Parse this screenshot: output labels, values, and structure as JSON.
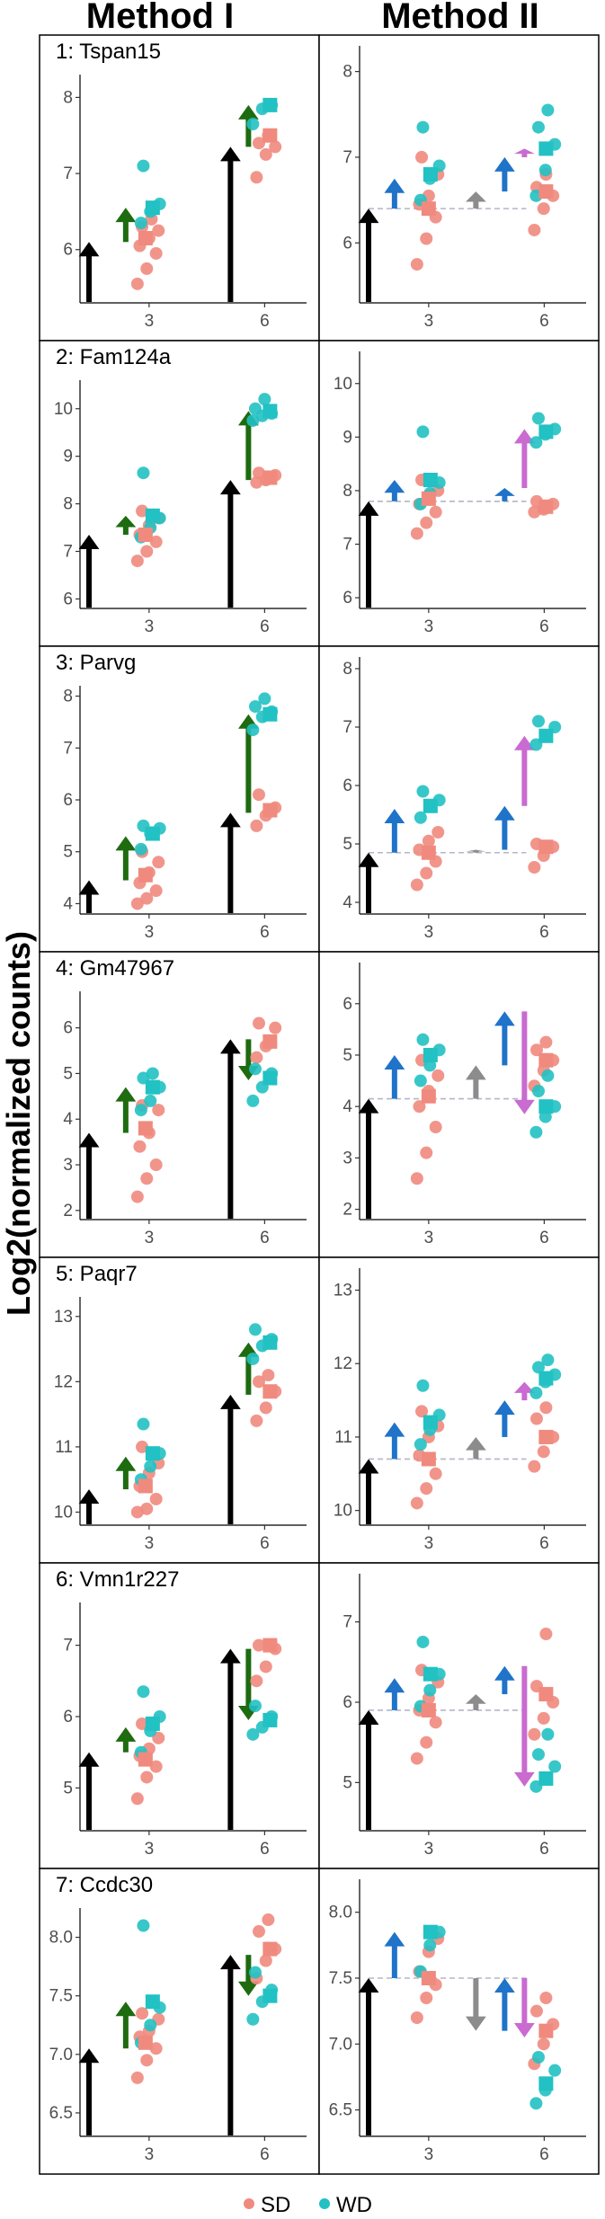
{
  "header": {
    "col1": "Method I",
    "col2": "Method II"
  },
  "y_axis_label": "Log2(normalized counts)",
  "legend": [
    {
      "key": "SD",
      "label": "SD",
      "color": "#F08A7E"
    },
    {
      "key": "WD",
      "label": "WD",
      "color": "#22C1C3"
    }
  ],
  "colors": {
    "SD": "#F08A7E",
    "WD": "#22C1C3",
    "base_arrow": "#000000",
    "method1_effect": "#1E6B10",
    "method2_effect": "#1F73C8",
    "method2_time": "#8C8C8C",
    "method2_interaction": "#C96BD0",
    "reference_line": "#B5B5C8"
  },
  "chart_data": [
    {
      "type": "scatter",
      "gene": "1:  Tspan15",
      "x_ticks": [
        "3",
        "6"
      ],
      "ylim": [
        5.3,
        8.3
      ],
      "y_ticks": [
        6,
        7,
        8
      ],
      "m1": {
        "baseline": 6.1,
        "t3_wd": 6.55,
        "t6_sd": 7.35,
        "t6_wd": 7.9,
        "sd3_mean": 6.15,
        "wd3_mean": 6.55,
        "sd6_mean": 7.5,
        "wd6_mean": 7.9,
        "sd3": [
          5.55,
          5.75,
          5.95,
          6.05,
          6.15,
          6.25,
          6.3,
          6.4
        ],
        "wd3": [
          6.35,
          6.5,
          6.6,
          7.1
        ],
        "sd6": [
          6.95,
          7.25,
          7.35,
          7.4,
          7.5
        ],
        "wd6": [
          7.65,
          7.85,
          7.9
        ]
      },
      "m2": {
        "ref": 6.4,
        "wd3_top": 6.75,
        "time6_top": 6.6,
        "wd6_top": 7.0,
        "int6_top": 7.1,
        "sd3_mean": 6.4,
        "wd3_mean": 6.8,
        "sd6_mean": 6.6,
        "wd6_mean": 7.1,
        "sd3": [
          5.75,
          6.05,
          6.3,
          6.45,
          6.55,
          6.8,
          7.0
        ],
        "wd3": [
          6.5,
          6.75,
          6.9,
          7.35
        ],
        "sd6": [
          6.15,
          6.4,
          6.55,
          6.65,
          6.8
        ],
        "wd6": [
          6.55,
          6.85,
          7.15,
          7.35,
          7.55
        ]
      }
    },
    {
      "type": "scatter",
      "gene": "2:  Fam124a",
      "x_ticks": [
        "3",
        "6"
      ],
      "ylim": [
        5.8,
        10.6
      ],
      "y_ticks": [
        6,
        7,
        8,
        9,
        10
      ],
      "m1": {
        "baseline": 7.35,
        "t3_wd": 7.75,
        "t6_sd": 8.5,
        "t6_wd": 9.95,
        "sd3_mean": 7.35,
        "wd3_mean": 7.75,
        "sd6_mean": 8.55,
        "wd6_mean": 9.95,
        "sd3": [
          6.8,
          7.0,
          7.2,
          7.35,
          7.55,
          7.7,
          7.85
        ],
        "wd3": [
          7.3,
          7.5,
          7.7,
          8.65
        ],
        "sd6": [
          8.45,
          8.5,
          8.6,
          8.65
        ],
        "wd6": [
          9.75,
          9.85,
          9.9,
          10.0,
          10.2
        ]
      },
      "m2": {
        "ref": 7.8,
        "wd3_top": 8.2,
        "time6_top": 7.8,
        "wd6_top": 8.05,
        "int6_top": 9.15,
        "sd3_mean": 7.85,
        "wd3_mean": 8.2,
        "sd6_mean": 7.7,
        "wd6_mean": 9.1,
        "sd3": [
          7.2,
          7.4,
          7.6,
          7.75,
          7.9,
          8.0,
          8.2
        ],
        "wd3": [
          7.75,
          7.95,
          8.15,
          9.1
        ],
        "sd6": [
          7.6,
          7.65,
          7.75,
          7.8
        ],
        "wd6": [
          8.9,
          9.05,
          9.15,
          9.35
        ]
      }
    },
    {
      "type": "scatter",
      "gene": "3:  Parvg",
      "x_ticks": [
        "3",
        "6"
      ],
      "ylim": [
        3.8,
        8.2
      ],
      "y_ticks": [
        4,
        5,
        6,
        7,
        8
      ],
      "m1": {
        "baseline": 4.45,
        "t3_wd": 5.3,
        "t6_sd": 5.75,
        "t6_wd": 7.65,
        "sd3_mean": 4.55,
        "wd3_mean": 5.35,
        "sd6_mean": 5.8,
        "wd6_mean": 7.65,
        "sd3": [
          4.0,
          4.1,
          4.25,
          4.4,
          4.6,
          4.8,
          5.0
        ],
        "wd3": [
          5.05,
          5.35,
          5.45,
          5.5
        ],
        "sd6": [
          5.5,
          5.7,
          5.85,
          6.1
        ],
        "wd6": [
          7.35,
          7.6,
          7.7,
          7.8,
          7.95
        ]
      },
      "m2": {
        "ref": 4.85,
        "wd3_top": 5.6,
        "time6_top": 4.9,
        "wd6_top": 5.65,
        "int6_top": 6.85,
        "sd3_mean": 4.85,
        "wd3_mean": 5.65,
        "sd6_mean": 4.95,
        "wd6_mean": 6.85,
        "sd3": [
          4.3,
          4.5,
          4.7,
          4.9,
          5.05,
          5.2
        ],
        "wd3": [
          5.45,
          5.65,
          5.75,
          5.9
        ],
        "sd6": [
          4.6,
          4.8,
          4.95,
          5.0
        ],
        "wd6": [
          6.7,
          6.85,
          7.0,
          7.1
        ]
      }
    },
    {
      "type": "scatter",
      "gene": "4:  Gm47967",
      "x_ticks": [
        "3",
        "6"
      ],
      "ylim": [
        1.8,
        6.8
      ],
      "y_ticks": [
        2,
        3,
        4,
        5,
        6
      ],
      "m1": {
        "baseline": 3.7,
        "t3_wd": 4.7,
        "t6_sd": 5.75,
        "t6_wd": 4.85,
        "sd3_mean": 3.8,
        "wd3_mean": 4.7,
        "sd6_mean": 5.7,
        "wd6_mean": 4.9,
        "sd3": [
          2.3,
          2.7,
          3.0,
          3.4,
          3.7,
          4.2,
          4.3
        ],
        "wd3": [
          4.2,
          4.4,
          4.7,
          4.9,
          5.0
        ],
        "sd6": [
          5.35,
          5.6,
          6.0,
          6.1
        ],
        "wd6": [
          4.4,
          4.7,
          5.0,
          5.1
        ]
      },
      "m2": {
        "ref": 4.15,
        "wd3_top": 5.0,
        "time6_top": 4.8,
        "wd6_top": 5.85,
        "int6_top": 3.85,
        "sd3_mean": 4.2,
        "wd3_mean": 5.0,
        "sd6_mean": 4.9,
        "wd6_mean": 4.0,
        "sd3": [
          2.6,
          3.1,
          3.6,
          4.0,
          4.3,
          4.6,
          4.9
        ],
        "wd3": [
          4.5,
          4.8,
          5.1,
          5.3
        ],
        "sd6": [
          4.4,
          4.7,
          4.9,
          5.1,
          5.25
        ],
        "wd6": [
          3.5,
          3.8,
          4.0,
          4.3,
          4.6
        ]
      }
    },
    {
      "type": "scatter",
      "gene": "5:  Paqr7",
      "x_ticks": [
        "3",
        "6"
      ],
      "ylim": [
        9.8,
        13.3
      ],
      "y_ticks": [
        10,
        11,
        12,
        13
      ],
      "m1": {
        "baseline": 10.35,
        "t3_wd": 10.85,
        "t6_sd": 11.8,
        "t6_wd": 12.6,
        "sd3_mean": 10.4,
        "wd3_mean": 10.9,
        "sd6_mean": 11.85,
        "wd6_mean": 12.6,
        "sd3": [
          10.0,
          10.05,
          10.2,
          10.4,
          10.6,
          10.75,
          11.0
        ],
        "wd3": [
          10.5,
          10.7,
          10.9,
          11.35
        ],
        "sd6": [
          11.4,
          11.6,
          11.85,
          12.0,
          12.1
        ],
        "wd6": [
          12.35,
          12.55,
          12.65,
          12.8
        ]
      },
      "m2": {
        "ref": 10.7,
        "wd3_top": 11.2,
        "time6_top": 11.0,
        "wd6_top": 11.5,
        "int6_top": 11.75,
        "sd3_mean": 10.7,
        "wd3_mean": 11.2,
        "sd6_mean": 11.0,
        "wd6_mean": 11.8,
        "sd3": [
          10.1,
          10.3,
          10.5,
          10.75,
          11.0,
          11.15,
          11.35
        ],
        "wd3": [
          10.9,
          11.1,
          11.3,
          11.7
        ],
        "sd6": [
          10.6,
          10.8,
          11.0,
          11.25,
          11.4
        ],
        "wd6": [
          11.6,
          11.75,
          11.85,
          11.95,
          12.05
        ]
      }
    },
    {
      "type": "scatter",
      "gene": "6:  Vmn1r227",
      "x_ticks": [
        "3",
        "6"
      ],
      "ylim": [
        4.4,
        7.6
      ],
      "y_ticks": [
        5,
        6,
        7
      ],
      "m1": {
        "baseline": 5.5,
        "t3_wd": 5.85,
        "t6_sd": 6.95,
        "t6_wd": 5.95,
        "sd3_mean": 5.4,
        "wd3_mean": 5.9,
        "sd6_mean": 7.0,
        "wd6_mean": 5.95,
        "sd3": [
          4.85,
          5.15,
          5.3,
          5.45,
          5.55,
          5.7,
          5.9
        ],
        "wd3": [
          5.5,
          5.8,
          6.0,
          6.35
        ],
        "sd6": [
          6.5,
          6.7,
          6.95,
          7.0
        ],
        "wd6": [
          5.75,
          5.85,
          6.0,
          6.15
        ]
      },
      "m2": {
        "ref": 5.9,
        "wd3_top": 6.3,
        "time6_top": 6.1,
        "wd6_top": 6.45,
        "int6_top": 4.95,
        "sd3_mean": 5.9,
        "wd3_mean": 6.35,
        "sd6_mean": 6.1,
        "wd6_mean": 5.05,
        "sd3": [
          5.3,
          5.5,
          5.75,
          5.9,
          6.05,
          6.25,
          6.4
        ],
        "wd3": [
          5.95,
          6.15,
          6.35,
          6.75
        ],
        "sd6": [
          5.6,
          5.8,
          6.0,
          6.2,
          6.85
        ],
        "wd6": [
          4.95,
          5.05,
          5.2,
          5.35,
          5.6
        ]
      }
    },
    {
      "type": "scatter",
      "gene": "7:  Ccdc30",
      "x_ticks": [
        "3",
        "6"
      ],
      "ylim": [
        6.3,
        8.25
      ],
      "y_ticks": [
        6.5,
        7.0,
        7.5,
        8.0
      ],
      "y_tick_labels": [
        "6.5",
        "7.0",
        "7.5",
        "8.0"
      ],
      "m1": {
        "baseline": 7.05,
        "t3_wd": 7.45,
        "t6_sd": 7.85,
        "t6_wd": 7.5,
        "sd3_mean": 7.1,
        "wd3_mean": 7.45,
        "sd6_mean": 7.9,
        "wd6_mean": 7.5,
        "sd3": [
          6.8,
          6.95,
          7.05,
          7.15,
          7.2,
          7.3,
          7.35
        ],
        "wd3": [
          7.1,
          7.25,
          7.4,
          8.1
        ],
        "sd6": [
          7.65,
          7.8,
          7.9,
          8.05,
          8.15
        ],
        "wd6": [
          7.3,
          7.45,
          7.55,
          7.7
        ]
      },
      "m2": {
        "ref": 7.5,
        "wd3_top": 7.85,
        "time6_top": 7.1,
        "wd6_top": 7.5,
        "int6_top": 7.05,
        "sd3_mean": 7.5,
        "wd3_mean": 7.85,
        "sd6_mean": 7.1,
        "wd6_mean": 6.7,
        "sd3": [
          7.2,
          7.35,
          7.45,
          7.55,
          7.7,
          7.8
        ],
        "wd3": [
          7.55,
          7.75,
          7.85
        ],
        "sd6": [
          6.85,
          7.0,
          7.15,
          7.25,
          7.35
        ],
        "wd6": [
          6.55,
          6.65,
          6.8,
          6.9
        ]
      }
    }
  ]
}
